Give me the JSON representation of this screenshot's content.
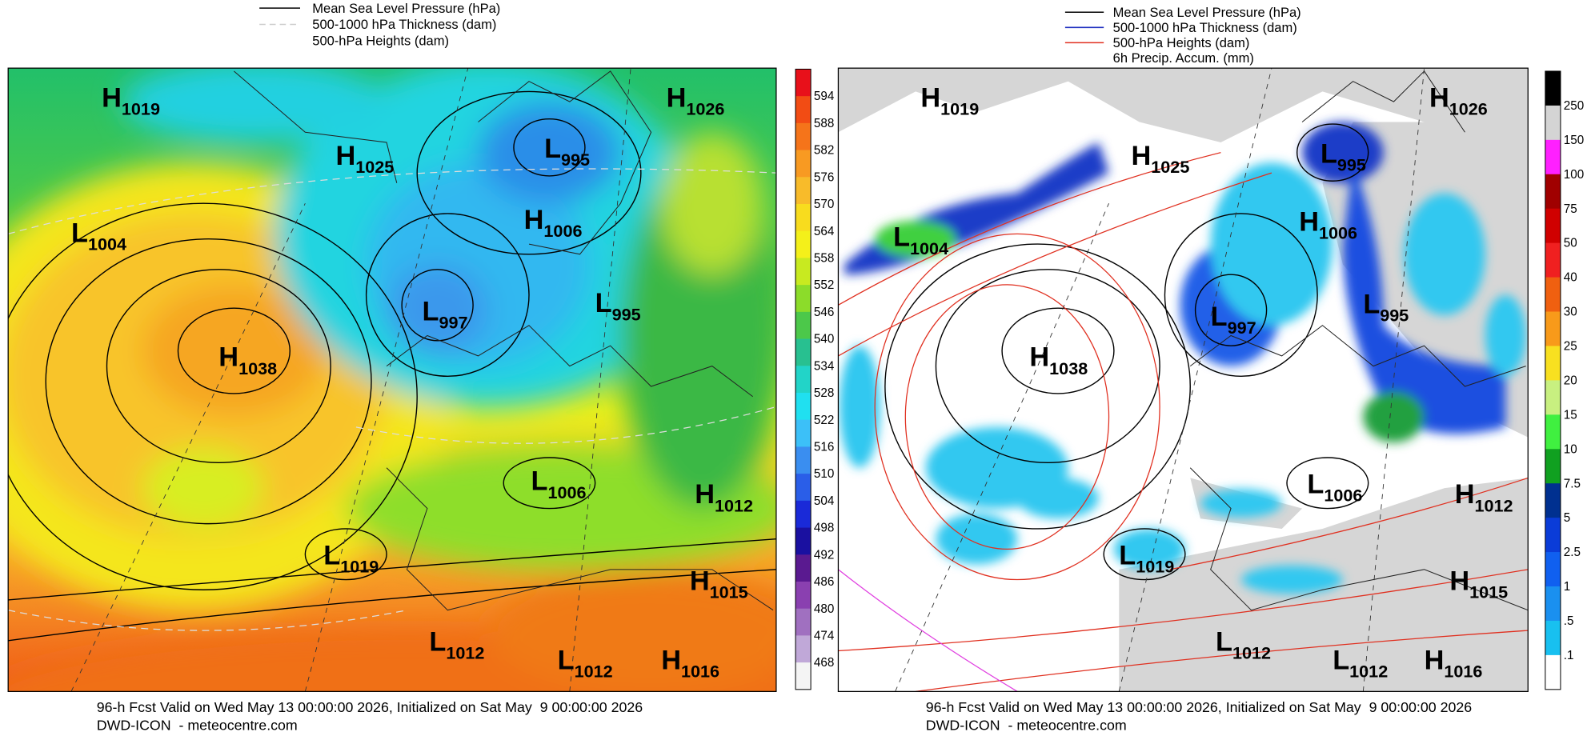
{
  "left": {
    "legend": [
      "Mean Sea Level Pressure (hPa)",
      "500-1000 hPa Thickness (dam)",
      "500-hPa Heights (dam)"
    ],
    "colorbar": [
      594,
      588,
      582,
      576,
      570,
      564,
      558,
      552,
      546,
      540,
      534,
      528,
      522,
      516,
      510,
      504,
      498,
      492,
      486,
      480,
      474,
      468
    ],
    "centers": [
      {
        "kind": "H",
        "value": 1019
      },
      {
        "kind": "H",
        "value": 1025
      },
      {
        "kind": "L",
        "value": 995
      },
      {
        "kind": "H",
        "value": 1026
      },
      {
        "kind": "L",
        "value": 1004
      },
      {
        "kind": "H",
        "value": 1006
      },
      {
        "kind": "L",
        "value": 997
      },
      {
        "kind": "L",
        "value": 995
      },
      {
        "kind": "H",
        "value": 1038
      },
      {
        "kind": "L",
        "value": 1006
      },
      {
        "kind": "H",
        "value": 1012
      },
      {
        "kind": "L",
        "value": 1019
      },
      {
        "kind": "H",
        "value": 1015
      },
      {
        "kind": "L",
        "value": 1012
      },
      {
        "kind": "L",
        "value": 1012
      },
      {
        "kind": "H",
        "value": 1016
      }
    ],
    "footer": [
      "96-h Fcst Valid on Wed May 13 00:00:00 2026, Initialized on Sat May  9 00:00:00 2026",
      "DWD-ICON  - meteocentre.com"
    ]
  },
  "right": {
    "legend": [
      "Mean Sea Level Pressure (hPa)",
      "500-1000 hPa Thickness (dam)",
      "500-hPa Heights (dam)",
      "6h Precip. Accum. (mm)"
    ],
    "colorbar": [
      "250",
      "150",
      "100",
      "75",
      "50",
      "40",
      "30",
      "25",
      "20",
      "15",
      "10",
      "7.5",
      "5",
      "2.5",
      "1",
      ".5",
      ".1"
    ],
    "centers": [
      {
        "kind": "H",
        "value": 1019
      },
      {
        "kind": "H",
        "value": 1025
      },
      {
        "kind": "L",
        "value": 995
      },
      {
        "kind": "H",
        "value": 1026
      },
      {
        "kind": "L",
        "value": 1004
      },
      {
        "kind": "H",
        "value": 1006
      },
      {
        "kind": "L",
        "value": 997
      },
      {
        "kind": "L",
        "value": 995
      },
      {
        "kind": "H",
        "value": 1038
      },
      {
        "kind": "L",
        "value": 1006
      },
      {
        "kind": "H",
        "value": 1012
      },
      {
        "kind": "L",
        "value": 1019
      },
      {
        "kind": "H",
        "value": 1015
      },
      {
        "kind": "L",
        "value": 1012
      },
      {
        "kind": "L",
        "value": 1012
      },
      {
        "kind": "H",
        "value": 1016
      }
    ],
    "footer": [
      "96-h Fcst Valid on Wed May 13 00:00:00 2026, Initialized on Sat May  9 00:00:00 2026",
      "DWD-ICON  - meteocentre.com"
    ]
  }
}
